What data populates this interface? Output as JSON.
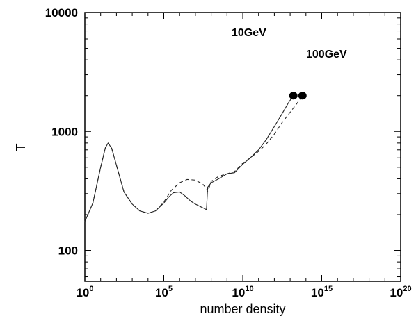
{
  "chart_data": {
    "type": "line",
    "xlabel": "number density",
    "ylabel": "T",
    "x_scale": "log",
    "y_scale": "log",
    "xlim": [
      1,
      1e+20
    ],
    "ylim": [
      55,
      10000
    ],
    "x_ticks": [
      {
        "base": "10",
        "exp": "0",
        "value": 1
      },
      {
        "base": "10",
        "exp": "5",
        "value": 100000.0
      },
      {
        "base": "10",
        "exp": "10",
        "value": 10000000000.0
      },
      {
        "base": "10",
        "exp": "15",
        "value": 1000000000000000.0
      },
      {
        "base": "10",
        "exp": "20",
        "value": 1e+20
      }
    ],
    "y_ticks": [
      {
        "label": "100",
        "value": 100
      },
      {
        "label": "1000",
        "value": 1000
      },
      {
        "label": "10000",
        "value": 10000
      }
    ],
    "annotations": [
      "10GeV",
      "100GeV"
    ],
    "series": [
      {
        "style": "solid",
        "x": [
          1,
          3.2,
          10,
          20,
          30,
          50,
          100,
          300,
          1000,
          3000,
          10000.0,
          30000.0,
          100000.0,
          200000.0,
          400000.0,
          1000000.0,
          2000000.0,
          5000000.0,
          10000000.0,
          30000000.0,
          50000000.0,
          60000000.0,
          100000000.0,
          300000000.0,
          1000000000.0,
          3000000000.0,
          10000000000.0,
          30000000000.0,
          100000000000.0,
          300000000000.0,
          1000000000000.0,
          3000000000000.0,
          8000000000000.0,
          16000000000000.0
        ],
        "y": [
          175,
          250,
          500,
          730,
          800,
          720,
          520,
          310,
          245,
          215,
          205,
          215,
          250,
          280,
          305,
          310,
          290,
          260,
          245,
          228,
          220,
          340,
          370,
          400,
          440,
          450,
          530,
          600,
          700,
          850,
          1100,
          1400,
          1750,
          2000
        ]
      },
      {
        "style": "dashed",
        "x": [
          1,
          3.2,
          10,
          20,
          30,
          50,
          100,
          300,
          1000,
          3000,
          10000.0,
          30000.0,
          100000.0,
          300000.0,
          1000000.0,
          3000000.0,
          10000000.0,
          30000000.0,
          50000000.0,
          60000000.0,
          100000000.0,
          300000000.0,
          1000000000.0,
          3000000000.0,
          10000000000.0,
          30000000000.0,
          100000000000.0,
          300000000000.0,
          1000000000000.0,
          3000000000000.0,
          10000000000000.0,
          30000000000000.0,
          60000000000000.0
        ],
        "y": [
          175,
          250,
          500,
          730,
          800,
          720,
          520,
          310,
          245,
          215,
          205,
          215,
          255,
          320,
          370,
          395,
          390,
          360,
          330,
          310,
          380,
          420,
          440,
          460,
          540,
          600,
          680,
          780,
          950,
          1180,
          1450,
          1750,
          2000
        ]
      }
    ],
    "markers": [
      {
        "x": 16000000000000.0,
        "y": 2000
      },
      {
        "x": 60000000000000.0,
        "y": 2000
      }
    ]
  }
}
